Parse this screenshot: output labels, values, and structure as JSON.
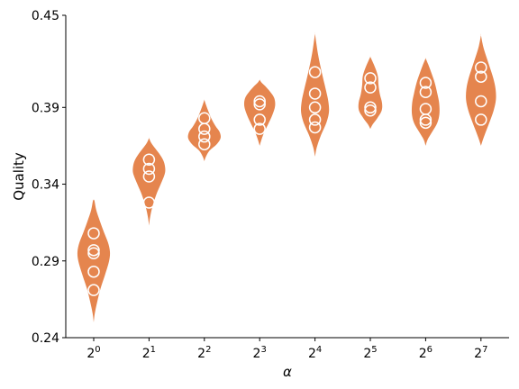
{
  "chart_data": {
    "type": "violin",
    "title": "",
    "xlabel": "α",
    "ylabel": "Quality",
    "ylim": [
      0.24,
      0.45
    ],
    "yticks": [
      "0.24",
      "0.29",
      "0.34",
      "0.39",
      "0.45"
    ],
    "ytick_values": [
      0.24,
      0.29,
      0.34,
      0.39,
      0.45
    ],
    "color": "#E5854E",
    "marker_color": "#ffffff",
    "categories": [
      {
        "base": "2",
        "exp": "0"
      },
      {
        "base": "2",
        "exp": "1"
      },
      {
        "base": "2",
        "exp": "2"
      },
      {
        "base": "2",
        "exp": "3"
      },
      {
        "base": "2",
        "exp": "4"
      },
      {
        "base": "2",
        "exp": "5"
      },
      {
        "base": "2",
        "exp": "6"
      },
      {
        "base": "2",
        "exp": "7"
      }
    ],
    "series": [
      {
        "name": "2^0",
        "points": [
          0.308,
          0.297,
          0.295,
          0.283,
          0.271
        ],
        "profile": [
          [
            0.25,
            0.0
          ],
          [
            0.256,
            0.07
          ],
          [
            0.264,
            0.23
          ],
          [
            0.272,
            0.42
          ],
          [
            0.281,
            0.7
          ],
          [
            0.29,
            0.95
          ],
          [
            0.296,
            1.0
          ],
          [
            0.302,
            0.88
          ],
          [
            0.309,
            0.62
          ],
          [
            0.316,
            0.38
          ],
          [
            0.323,
            0.16
          ],
          [
            0.329,
            0.05
          ],
          [
            0.33,
            0.0
          ]
        ]
      },
      {
        "name": "2^1",
        "points": [
          0.356,
          0.35,
          0.345,
          0.328
        ],
        "profile": [
          [
            0.313,
            0.0
          ],
          [
            0.318,
            0.06
          ],
          [
            0.325,
            0.2
          ],
          [
            0.333,
            0.44
          ],
          [
            0.34,
            0.72
          ],
          [
            0.346,
            0.95
          ],
          [
            0.35,
            1.0
          ],
          [
            0.355,
            0.9
          ],
          [
            0.36,
            0.62
          ],
          [
            0.364,
            0.33
          ],
          [
            0.367,
            0.13
          ],
          [
            0.37,
            0.0
          ]
        ]
      },
      {
        "name": "2^2",
        "points": [
          0.383,
          0.376,
          0.371,
          0.366
        ],
        "profile": [
          [
            0.355,
            0.0
          ],
          [
            0.358,
            0.1
          ],
          [
            0.362,
            0.33
          ],
          [
            0.366,
            0.76
          ],
          [
            0.37,
            1.0
          ],
          [
            0.374,
            0.94
          ],
          [
            0.378,
            0.68
          ],
          [
            0.383,
            0.42
          ],
          [
            0.388,
            0.23
          ],
          [
            0.392,
            0.09
          ],
          [
            0.395,
            0.0
          ]
        ]
      },
      {
        "name": "2^3",
        "points": [
          0.394,
          0.392,
          0.382,
          0.376
        ],
        "profile": [
          [
            0.365,
            0.0
          ],
          [
            0.369,
            0.11
          ],
          [
            0.374,
            0.29
          ],
          [
            0.379,
            0.52
          ],
          [
            0.385,
            0.78
          ],
          [
            0.391,
            0.95
          ],
          [
            0.396,
            0.9
          ],
          [
            0.4,
            0.66
          ],
          [
            0.404,
            0.33
          ],
          [
            0.406,
            0.13
          ],
          [
            0.408,
            0.0
          ]
        ]
      },
      {
        "name": "2^4",
        "points": [
          0.413,
          0.399,
          0.39,
          0.382,
          0.377
        ],
        "profile": [
          [
            0.358,
            0.0
          ],
          [
            0.364,
            0.11
          ],
          [
            0.372,
            0.37
          ],
          [
            0.38,
            0.7
          ],
          [
            0.387,
            0.86
          ],
          [
            0.394,
            0.82
          ],
          [
            0.401,
            0.68
          ],
          [
            0.409,
            0.5
          ],
          [
            0.417,
            0.33
          ],
          [
            0.425,
            0.18
          ],
          [
            0.432,
            0.08
          ],
          [
            0.438,
            0.0
          ]
        ]
      },
      {
        "name": "2^5",
        "points": [
          0.409,
          0.403,
          0.39,
          0.388
        ],
        "profile": [
          [
            0.376,
            0.0
          ],
          [
            0.379,
            0.15
          ],
          [
            0.383,
            0.43
          ],
          [
            0.388,
            0.7
          ],
          [
            0.393,
            0.72
          ],
          [
            0.399,
            0.58
          ],
          [
            0.405,
            0.5
          ],
          [
            0.41,
            0.47
          ],
          [
            0.415,
            0.33
          ],
          [
            0.42,
            0.13
          ],
          [
            0.423,
            0.0
          ]
        ]
      },
      {
        "name": "2^6",
        "points": [
          0.406,
          0.4,
          0.389,
          0.382,
          0.38
        ],
        "profile": [
          [
            0.365,
            0.0
          ],
          [
            0.369,
            0.12
          ],
          [
            0.374,
            0.4
          ],
          [
            0.38,
            0.72
          ],
          [
            0.386,
            0.85
          ],
          [
            0.393,
            0.83
          ],
          [
            0.399,
            0.72
          ],
          [
            0.406,
            0.56
          ],
          [
            0.412,
            0.37
          ],
          [
            0.418,
            0.16
          ],
          [
            0.422,
            0.0
          ]
        ]
      },
      {
        "name": "2^7",
        "points": [
          0.416,
          0.41,
          0.394,
          0.382
        ],
        "profile": [
          [
            0.365,
            0.0
          ],
          [
            0.369,
            0.12
          ],
          [
            0.375,
            0.33
          ],
          [
            0.381,
            0.55
          ],
          [
            0.388,
            0.78
          ],
          [
            0.395,
            0.92
          ],
          [
            0.402,
            0.9
          ],
          [
            0.409,
            0.76
          ],
          [
            0.416,
            0.55
          ],
          [
            0.423,
            0.33
          ],
          [
            0.43,
            0.13
          ],
          [
            0.437,
            0.0
          ]
        ]
      }
    ]
  }
}
